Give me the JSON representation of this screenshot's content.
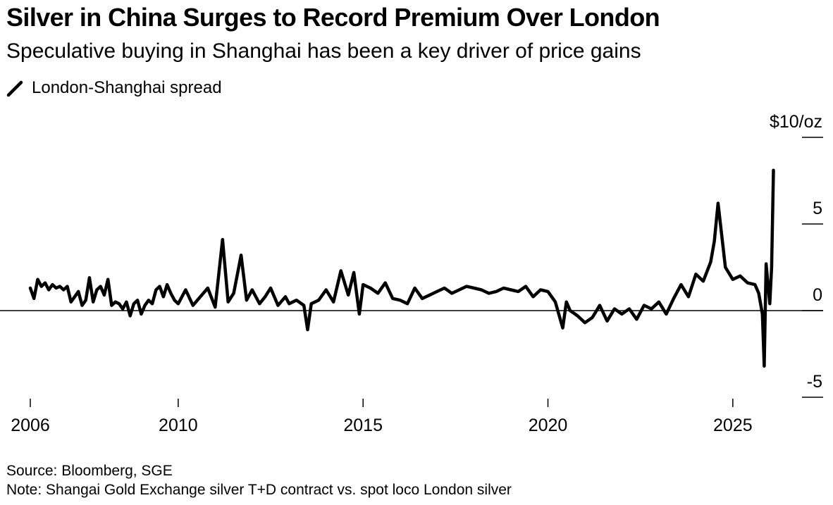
{
  "title": "Silver in China Surges to Record Premium Over London",
  "subtitle": "Speculative buying in Shanghai has been a key driver of price gains",
  "legend": {
    "label": "London-Shanghai spread",
    "color": "#000000"
  },
  "source": "Source: Bloomberg, SGE",
  "note": "Note: Shangai Gold Exchange silver T+D contract vs. spot loco London silver",
  "chart_data": {
    "type": "line",
    "title": "Silver in China Surges to Record Premium Over London",
    "xlabel": "",
    "ylabel": "$10/oz",
    "xlim": [
      2006,
      2027.5
    ],
    "ylim": [
      -5,
      10
    ],
    "x_ticks": [
      {
        "value": 2006,
        "label": "2006"
      },
      {
        "value": 2010,
        "label": "2010"
      },
      {
        "value": 2015,
        "label": "2015"
      },
      {
        "value": 2020,
        "label": "2020"
      },
      {
        "value": 2025,
        "label": "2025"
      }
    ],
    "y_ticks": [
      {
        "value": 10,
        "label": "$10/oz"
      },
      {
        "value": 5,
        "label": "5"
      },
      {
        "value": 0,
        "label": "0"
      },
      {
        "value": -5,
        "label": "-5"
      }
    ],
    "zero_line": true,
    "grid": false,
    "series": [
      {
        "name": "London-Shanghai spread",
        "color": "#000000",
        "x": [
          2006.0,
          2006.1,
          2006.2,
          2006.3,
          2006.4,
          2006.5,
          2006.6,
          2006.7,
          2006.8,
          2006.9,
          2007.0,
          2007.1,
          2007.2,
          2007.3,
          2007.4,
          2007.5,
          2007.6,
          2007.7,
          2007.8,
          2007.9,
          2008.0,
          2008.1,
          2008.2,
          2008.3,
          2008.4,
          2008.5,
          2008.6,
          2008.7,
          2008.8,
          2008.9,
          2009.0,
          2009.1,
          2009.2,
          2009.3,
          2009.4,
          2009.5,
          2009.6,
          2009.7,
          2009.8,
          2009.9,
          2010.0,
          2010.2,
          2010.4,
          2010.6,
          2010.8,
          2011.0,
          2011.2,
          2011.35,
          2011.5,
          2011.7,
          2011.85,
          2012.0,
          2012.2,
          2012.35,
          2012.5,
          2012.7,
          2012.9,
          2013.0,
          2013.2,
          2013.4,
          2013.5,
          2013.6,
          2013.8,
          2014.0,
          2014.2,
          2014.4,
          2014.6,
          2014.75,
          2014.9,
          2015.0,
          2015.2,
          2015.4,
          2015.6,
          2015.8,
          2016.0,
          2016.2,
          2016.4,
          2016.6,
          2016.8,
          2017.0,
          2017.2,
          2017.4,
          2017.6,
          2017.8,
          2018.0,
          2018.2,
          2018.4,
          2018.6,
          2018.8,
          2019.0,
          2019.2,
          2019.4,
          2019.6,
          2019.8,
          2020.0,
          2020.2,
          2020.4,
          2020.5,
          2020.6,
          2020.8,
          2021.0,
          2021.2,
          2021.4,
          2021.6,
          2021.8,
          2022.0,
          2022.2,
          2022.4,
          2022.6,
          2022.8,
          2023.0,
          2023.2,
          2023.4,
          2023.6,
          2023.8,
          2024.0,
          2024.2,
          2024.4,
          2024.5,
          2024.6,
          2024.8,
          2025.0,
          2025.2,
          2025.4,
          2025.6,
          2025.7,
          2025.8,
          2025.85,
          2025.9,
          2026.0,
          2026.05,
          2026.1
        ],
        "values": [
          1.3,
          0.7,
          1.8,
          1.4,
          1.6,
          1.2,
          1.5,
          1.3,
          1.4,
          1.2,
          1.4,
          0.5,
          0.8,
          1.1,
          0.3,
          0.6,
          1.9,
          0.5,
          1.2,
          1.4,
          0.9,
          1.8,
          0.3,
          0.5,
          0.4,
          0.1,
          0.5,
          -0.3,
          0.4,
          0.6,
          -0.2,
          0.3,
          0.6,
          0.4,
          1.2,
          1.4,
          0.8,
          1.5,
          1.0,
          0.6,
          0.4,
          1.2,
          0.3,
          0.8,
          1.3,
          0.2,
          4.1,
          0.5,
          1.0,
          3.2,
          0.6,
          1.2,
          0.4,
          0.8,
          1.3,
          0.3,
          0.8,
          0.4,
          0.6,
          0.3,
          -1.1,
          0.4,
          0.6,
          1.2,
          0.5,
          2.3,
          0.9,
          2.2,
          -0.2,
          1.5,
          1.3,
          1.0,
          1.6,
          0.7,
          0.6,
          0.4,
          1.3,
          0.7,
          0.9,
          1.1,
          1.3,
          1.0,
          1.2,
          1.4,
          1.3,
          1.2,
          1.0,
          1.1,
          1.3,
          1.2,
          1.1,
          1.4,
          0.8,
          1.2,
          1.1,
          0.5,
          -1.0,
          0.5,
          0.0,
          -0.3,
          -0.7,
          -0.4,
          0.3,
          -0.6,
          0.1,
          -0.2,
          0.1,
          -0.5,
          0.3,
          0.1,
          0.5,
          -0.2,
          0.7,
          1.5,
          0.8,
          2.1,
          1.7,
          2.8,
          4.0,
          6.2,
          2.5,
          1.8,
          2.0,
          1.6,
          1.5,
          1.0,
          -0.2,
          -3.2,
          2.7,
          0.4,
          2.5,
          8.1
        ]
      }
    ]
  }
}
